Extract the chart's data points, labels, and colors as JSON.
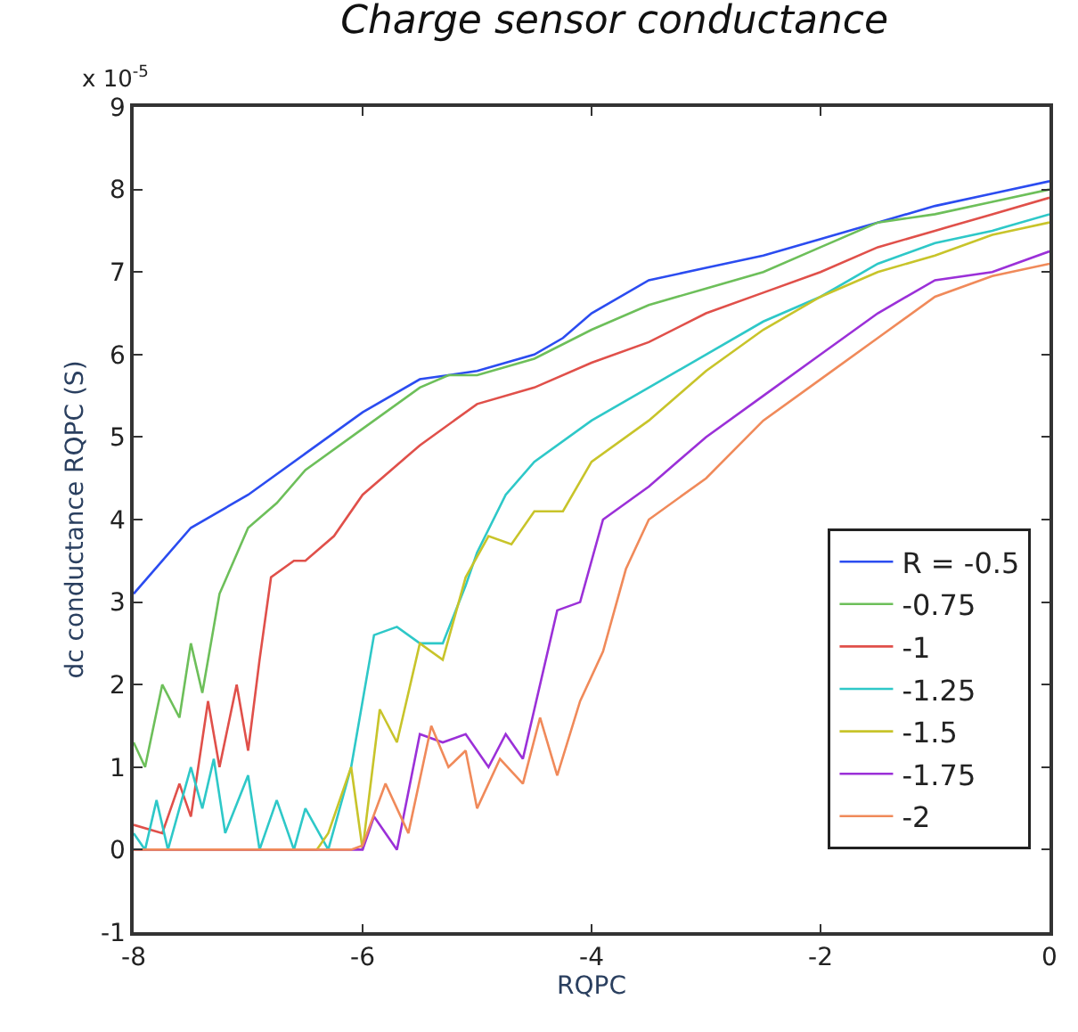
{
  "chart_data": {
    "type": "line",
    "title": "Charge sensor conductance",
    "xlabel": "RQPC",
    "ylabel": "dc conductance RQPC (S)",
    "annotations": [
      "x 10$^{-5}$"
    ],
    "xlim": [
      -8,
      0
    ],
    "xticks": [
      -8,
      -6,
      -4,
      -2,
      0
    ],
    "ylim": [
      -1,
      9
    ],
    "yticks": [
      -1,
      0,
      1,
      2,
      3,
      4,
      5,
      6,
      7,
      8,
      9
    ],
    "legend": "bottom right",
    "marker": "none",
    "line_style": "solid",
    "series": [
      {
        "name": "R = -0.5",
        "color": "#2b4cf0",
        "x": [
          -8,
          -7.5,
          -7,
          -6.5,
          -6,
          -5.5,
          -5.25,
          -5,
          -4.5,
          -4.25,
          -4,
          -3.5,
          -3,
          -2.5,
          -2,
          -1.5,
          -1,
          -0.5,
          0
        ],
        "values": [
          3.1,
          3.9,
          4.3,
          4.8,
          5.3,
          5.7,
          5.75,
          5.8,
          6.0,
          6.2,
          6.5,
          6.9,
          7.05,
          7.2,
          7.4,
          7.6,
          7.8,
          7.95,
          8.1
        ]
      },
      {
        "name": "-0.75",
        "color": "#6dbf5a",
        "x": [
          -8,
          -7.9,
          -7.75,
          -7.6,
          -7.5,
          -7.4,
          -7.25,
          -7,
          -6.75,
          -6.5,
          -6,
          -5.5,
          -5.25,
          -5,
          -4.5,
          -4,
          -3.5,
          -3,
          -2.5,
          -2,
          -1.5,
          -1,
          -0.5,
          0
        ],
        "values": [
          1.3,
          1.0,
          2.0,
          1.6,
          2.5,
          1.9,
          3.1,
          3.9,
          4.2,
          4.6,
          5.1,
          5.6,
          5.75,
          5.75,
          5.95,
          6.3,
          6.6,
          6.8,
          7.0,
          7.3,
          7.6,
          7.7,
          7.85,
          8.0
        ]
      },
      {
        "name": "-1",
        "color": "#e0504a",
        "x": [
          -8,
          -7.75,
          -7.6,
          -7.5,
          -7.35,
          -7.25,
          -7.1,
          -7,
          -6.9,
          -6.8,
          -6.6,
          -6.5,
          -6.25,
          -6,
          -5.5,
          -5,
          -4.5,
          -4,
          -3.5,
          -3,
          -2.5,
          -2,
          -1.5,
          -1,
          -0.5,
          0
        ],
        "values": [
          0.3,
          0.2,
          0.8,
          0.4,
          1.8,
          1.0,
          2.0,
          1.2,
          2.3,
          3.3,
          3.5,
          3.5,
          3.8,
          4.3,
          4.9,
          5.4,
          5.6,
          5.9,
          6.15,
          6.5,
          6.75,
          7.0,
          7.3,
          7.5,
          7.7,
          7.9
        ]
      },
      {
        "name": "-1.25",
        "color": "#2ec8c8",
        "x": [
          -8,
          -7.9,
          -7.8,
          -7.7,
          -7.5,
          -7.4,
          -7.3,
          -7.2,
          -7.0,
          -6.9,
          -6.75,
          -6.6,
          -6.5,
          -6.3,
          -6.1,
          -5.9,
          -5.7,
          -5.5,
          -5.3,
          -5.1,
          -5,
          -4.75,
          -4.5,
          -4,
          -3.5,
          -3,
          -2.5,
          -2,
          -1.5,
          -1,
          -0.5,
          0
        ],
        "values": [
          0.2,
          0.0,
          0.6,
          0.0,
          1.0,
          0.5,
          1.1,
          0.2,
          0.9,
          0.0,
          0.6,
          0.0,
          0.5,
          0.0,
          1.0,
          2.6,
          2.7,
          2.5,
          2.5,
          3.2,
          3.6,
          4.3,
          4.7,
          5.2,
          5.6,
          6.0,
          6.4,
          6.7,
          7.1,
          7.35,
          7.5,
          7.7
        ]
      },
      {
        "name": "-1.5",
        "color": "#c8c42a",
        "x": [
          -8,
          -6.4,
          -6.3,
          -6.1,
          -6.0,
          -5.85,
          -5.7,
          -5.5,
          -5.3,
          -5.1,
          -4.9,
          -4.7,
          -4.5,
          -4.25,
          -4,
          -3.5,
          -3,
          -2.5,
          -2,
          -1.5,
          -1,
          -0.5,
          0
        ],
        "values": [
          0,
          0,
          0.2,
          1.0,
          0.0,
          1.7,
          1.3,
          2.5,
          2.3,
          3.3,
          3.8,
          3.7,
          4.1,
          4.1,
          4.7,
          5.2,
          5.8,
          6.3,
          6.7,
          7.0,
          7.2,
          7.45,
          7.6
        ]
      },
      {
        "name": "-1.75",
        "color": "#9b30d8",
        "x": [
          -8,
          -6,
          -5.9,
          -5.7,
          -5.5,
          -5.3,
          -5.1,
          -4.9,
          -4.75,
          -4.6,
          -4.5,
          -4.3,
          -4.1,
          -3.9,
          -3.7,
          -3.5,
          -3,
          -2.5,
          -2,
          -1.5,
          -1,
          -0.5,
          0
        ],
        "values": [
          0,
          0,
          0.4,
          0.0,
          1.4,
          1.3,
          1.4,
          1.0,
          1.4,
          1.1,
          1.7,
          2.9,
          3.0,
          4.0,
          4.2,
          4.4,
          5.0,
          5.5,
          6.0,
          6.5,
          6.9,
          7.0,
          7.25
        ]
      },
      {
        "name": "-2",
        "color": "#f08a5a",
        "x": [
          -8,
          -6.1,
          -6,
          -5.8,
          -5.6,
          -5.4,
          -5.25,
          -5.1,
          -5,
          -4.8,
          -4.6,
          -4.45,
          -4.3,
          -4.1,
          -3.9,
          -3.7,
          -3.5,
          -3,
          -2.5,
          -2,
          -1.5,
          -1,
          -0.5,
          0
        ],
        "values": [
          0,
          0,
          0.05,
          0.8,
          0.2,
          1.5,
          1.0,
          1.2,
          0.5,
          1.1,
          0.8,
          1.6,
          0.9,
          1.8,
          2.4,
          3.4,
          4.0,
          4.5,
          5.2,
          5.7,
          6.2,
          6.7,
          6.95,
          7.1
        ]
      }
    ]
  }
}
